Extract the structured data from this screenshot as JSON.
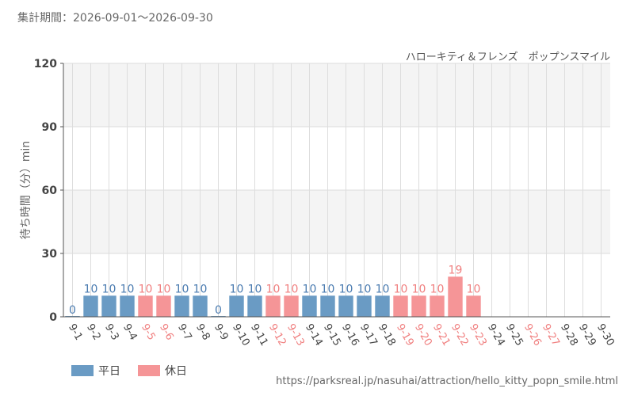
{
  "header": {
    "period": "集計期間：2026-09-01～2026-09-30",
    "attraction": "ハローキティ＆フレンズ　ポップンスマイル"
  },
  "footer": {
    "source": "https://parksreal.jp/nasuhai/attraction/hello_kitty_popn_smile.html"
  },
  "colors": {
    "weekday": "#6a9bc4",
    "weekday_label": "#4a7bb0",
    "holiday": "#f59597",
    "holiday_label": "#f07f7f",
    "band": "#f4f4f4",
    "grid": "#dddddd",
    "axis": "#555555"
  },
  "chart_data": {
    "type": "bar",
    "ylabel": "待ち時間（分）min",
    "ylim": [
      0,
      120
    ],
    "yticks": [
      0,
      30,
      60,
      90,
      120
    ],
    "categories": [
      "9-1",
      "9-2",
      "9-3",
      "9-4",
      "9-5",
      "9-6",
      "9-7",
      "9-8",
      "9-9",
      "9-10",
      "9-11",
      "9-12",
      "9-13",
      "9-14",
      "9-15",
      "9-16",
      "9-17",
      "9-18",
      "9-19",
      "9-20",
      "9-21",
      "9-22",
      "9-23",
      "9-24",
      "9-25",
      "9-26",
      "9-27",
      "9-28",
      "9-29",
      "9-30"
    ],
    "day_types": [
      "weekday",
      "weekday",
      "weekday",
      "weekday",
      "holiday",
      "holiday",
      "weekday",
      "weekday",
      "weekday",
      "weekday",
      "weekday",
      "holiday",
      "holiday",
      "weekday",
      "weekday",
      "weekday",
      "weekday",
      "weekday",
      "holiday",
      "holiday",
      "holiday",
      "holiday",
      "holiday",
      "weekday",
      "weekday",
      "holiday",
      "holiday",
      "weekday",
      "weekday",
      "weekday"
    ],
    "values": [
      0,
      10,
      10,
      10,
      10,
      10,
      10,
      10,
      0,
      10,
      10,
      10,
      10,
      10,
      10,
      10,
      10,
      10,
      10,
      10,
      10,
      19,
      10,
      null,
      null,
      null,
      null,
      null,
      null,
      null
    ],
    "legend": [
      {
        "key": "weekday",
        "label": "平日"
      },
      {
        "key": "holiday",
        "label": "休日"
      }
    ],
    "legend_position": "bottom-left",
    "grid": true
  }
}
